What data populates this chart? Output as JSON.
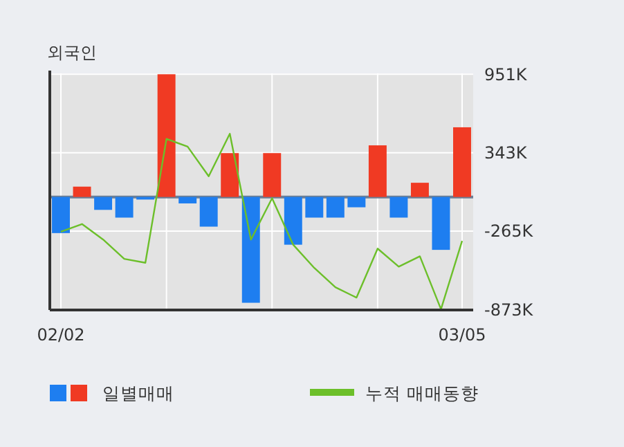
{
  "chart_data": {
    "type": "bar",
    "title": "외국인",
    "categories": [
      "02/02",
      null,
      null,
      null,
      null,
      null,
      null,
      null,
      null,
      null,
      null,
      null,
      null,
      null,
      null,
      null,
      null,
      null,
      null,
      "03/05"
    ],
    "series": [
      {
        "name": "일별매매",
        "colors": [
          "#1e7ef0",
          "#f03a23",
          "#1e7ef0",
          "#1e7ef0",
          "#1e7ef0",
          "#f03a23",
          "#1e7ef0",
          "#1e7ef0",
          "#f03a23",
          "#1e7ef0",
          "#f03a23",
          "#1e7ef0",
          "#1e7ef0",
          "#1e7ef0",
          "#1e7ef0",
          "#f03a23",
          "#1e7ef0",
          "#f03a23",
          "#1e7ef0",
          "#f03a23"
        ],
        "values": [
          -280,
          80,
          -100,
          -160,
          -20,
          951,
          -50,
          -230,
          340,
          -820,
          340,
          -370,
          -160,
          -160,
          -80,
          400,
          -160,
          110,
          -410,
          540
        ]
      },
      {
        "name": "누적 매매동향",
        "type": "line",
        "color": "#6cbf2a",
        "values": [
          -270,
          -210,
          -330,
          -480,
          -510,
          450,
          390,
          160,
          490,
          -330,
          -10,
          -370,
          -550,
          -700,
          -780,
          -400,
          -540,
          -460,
          -870,
          -340
        ]
      }
    ],
    "ylim": [
      -876,
      958
    ],
    "yticks": [
      {
        "value": 951,
        "label": "951K"
      },
      {
        "value": 343,
        "label": "343K"
      },
      {
        "value": -265,
        "label": "-265K"
      },
      {
        "value": -873,
        "label": "-873K"
      }
    ],
    "ref_lines": [
      {
        "axis": "y",
        "value": 0,
        "color": "#6b7f96"
      }
    ],
    "grid": true,
    "legend": "bottom"
  }
}
